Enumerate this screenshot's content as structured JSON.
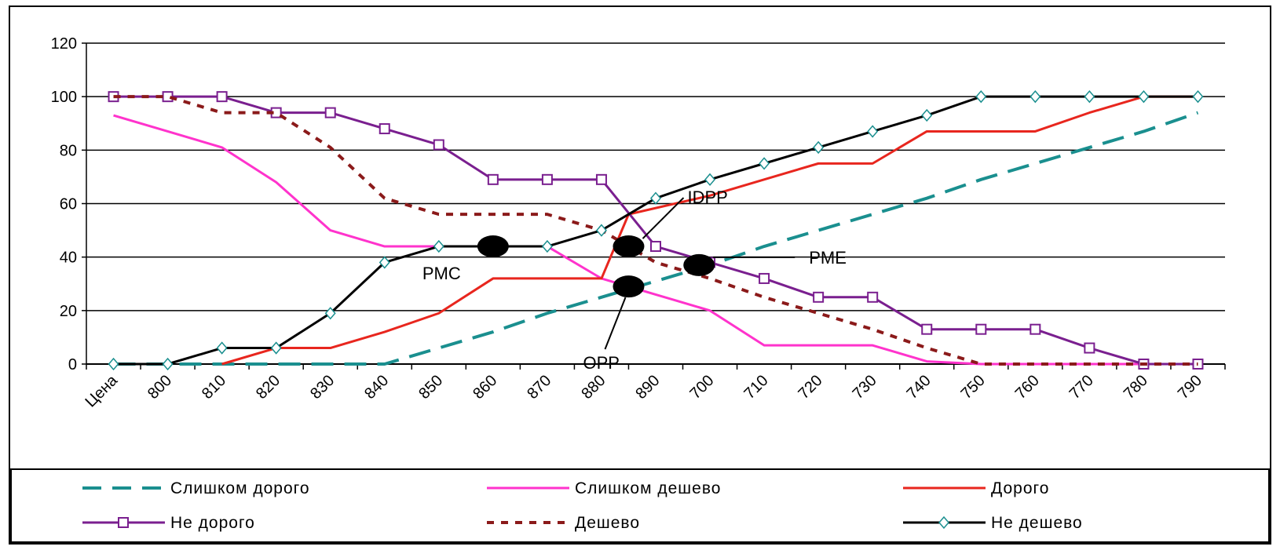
{
  "chart_data": {
    "type": "line",
    "x_label_first": "Цена",
    "x": [
      795,
      805,
      815,
      825,
      835,
      845,
      855,
      865,
      875,
      885,
      895,
      905,
      915,
      925,
      935,
      945,
      955,
      965,
      975,
      985,
      995
    ],
    "x_ticks": [
      "Цена",
      "800",
      "810",
      "820",
      "830",
      "840",
      "850",
      "860",
      "870",
      "880",
      "890",
      "700",
      "710",
      "720",
      "730",
      "740",
      "750",
      "760",
      "770",
      "780",
      "790"
    ],
    "y_ticks": [
      "0",
      "20",
      "40",
      "60",
      "80",
      "100",
      "120"
    ],
    "ylim": [
      0,
      120
    ],
    "grid": true,
    "legend_position": "bottom",
    "series": [
      {
        "name": "Слишком дорого",
        "color": "#1a8f8f",
        "style": "dash",
        "points": [
          [
            795,
            0
          ],
          [
            805,
            0
          ],
          [
            815,
            0
          ],
          [
            825,
            0
          ],
          [
            835,
            0
          ],
          [
            845,
            0
          ],
          [
            855,
            6
          ],
          [
            865,
            12
          ],
          [
            875,
            19
          ],
          [
            885,
            25
          ],
          [
            895,
            31
          ],
          [
            905,
            37
          ],
          [
            915,
            44
          ],
          [
            925,
            50
          ],
          [
            935,
            56
          ],
          [
            945,
            62
          ],
          [
            955,
            69
          ],
          [
            965,
            75
          ],
          [
            975,
            81
          ],
          [
            985,
            87
          ],
          [
            995,
            94
          ]
        ]
      },
      {
        "name": "Слишком дешево",
        "color": "#ff33cc",
        "style": "solid",
        "points": [
          [
            795,
            93
          ],
          [
            805,
            87
          ],
          [
            815,
            81
          ],
          [
            825,
            68
          ],
          [
            835,
            50
          ],
          [
            845,
            44
          ],
          [
            855,
            44
          ],
          [
            865,
            44
          ],
          [
            875,
            44
          ],
          [
            885,
            32
          ],
          [
            895,
            26
          ],
          [
            905,
            20
          ],
          [
            915,
            7
          ],
          [
            925,
            7
          ],
          [
            935,
            7
          ],
          [
            945,
            1
          ],
          [
            955,
            0
          ],
          [
            965,
            0
          ],
          [
            975,
            0
          ],
          [
            985,
            0
          ],
          [
            995,
            0
          ]
        ]
      },
      {
        "name": "Дорого",
        "color": "#e8261e",
        "style": "solid",
        "points": [
          [
            815,
            0
          ],
          [
            825,
            6
          ],
          [
            835,
            6
          ],
          [
            845,
            12
          ],
          [
            855,
            19
          ],
          [
            865,
            32
          ],
          [
            875,
            32
          ],
          [
            885,
            32
          ],
          [
            890,
            56
          ],
          [
            905,
            63
          ],
          [
            915,
            69
          ],
          [
            925,
            75
          ],
          [
            935,
            75
          ],
          [
            945,
            87
          ],
          [
            955,
            87
          ],
          [
            965,
            87
          ],
          [
            975,
            94
          ],
          [
            985,
            100
          ],
          [
            995,
            100
          ]
        ]
      },
      {
        "name": "Не дорого",
        "color": "#7a1f8f",
        "style": "solid",
        "marker": "square",
        "points": [
          [
            795,
            100
          ],
          [
            805,
            100
          ],
          [
            815,
            100
          ],
          [
            825,
            94
          ],
          [
            835,
            94
          ],
          [
            845,
            88
          ],
          [
            855,
            82
          ],
          [
            865,
            69
          ],
          [
            875,
            69
          ],
          [
            885,
            69
          ],
          [
            895,
            44
          ],
          [
            905,
            38
          ],
          [
            915,
            32
          ],
          [
            925,
            25
          ],
          [
            935,
            25
          ],
          [
            945,
            13
          ],
          [
            955,
            13
          ],
          [
            965,
            13
          ],
          [
            975,
            6
          ],
          [
            985,
            0
          ],
          [
            995,
            0
          ]
        ]
      },
      {
        "name": "Дешево",
        "color": "#8b1a1a",
        "style": "dot",
        "points": [
          [
            795,
            100
          ],
          [
            805,
            100
          ],
          [
            815,
            94
          ],
          [
            825,
            94
          ],
          [
            835,
            81
          ],
          [
            845,
            62
          ],
          [
            855,
            56
          ],
          [
            865,
            56
          ],
          [
            875,
            56
          ],
          [
            885,
            50
          ],
          [
            895,
            38
          ],
          [
            905,
            32
          ],
          [
            915,
            25
          ],
          [
            925,
            19
          ],
          [
            935,
            13
          ],
          [
            945,
            6
          ],
          [
            955,
            0
          ],
          [
            965,
            0
          ],
          [
            975,
            0
          ],
          [
            985,
            0
          ],
          [
            995,
            0
          ]
        ]
      },
      {
        "name": "Не дешево",
        "color": "#000000",
        "style": "solid",
        "marker": "diamond",
        "points": [
          [
            795,
            0
          ],
          [
            805,
            0
          ],
          [
            815,
            6
          ],
          [
            825,
            6
          ],
          [
            835,
            19
          ],
          [
            845,
            38
          ],
          [
            855,
            44
          ],
          [
            865,
            44
          ],
          [
            875,
            44
          ],
          [
            885,
            50
          ],
          [
            895,
            62
          ],
          [
            905,
            69
          ],
          [
            915,
            75
          ],
          [
            925,
            81
          ],
          [
            935,
            87
          ],
          [
            945,
            93
          ],
          [
            955,
            100
          ],
          [
            965,
            100
          ],
          [
            975,
            100
          ],
          [
            985,
            100
          ],
          [
            995,
            100
          ]
        ]
      }
    ],
    "annotations": [
      {
        "label": "PMC",
        "x": 865,
        "y": 44
      },
      {
        "label": "IDPP",
        "x": 890,
        "y": 44
      },
      {
        "label": "OPP",
        "x": 890,
        "y": 29
      },
      {
        "label": "PME",
        "x": 903,
        "y": 37
      }
    ]
  }
}
